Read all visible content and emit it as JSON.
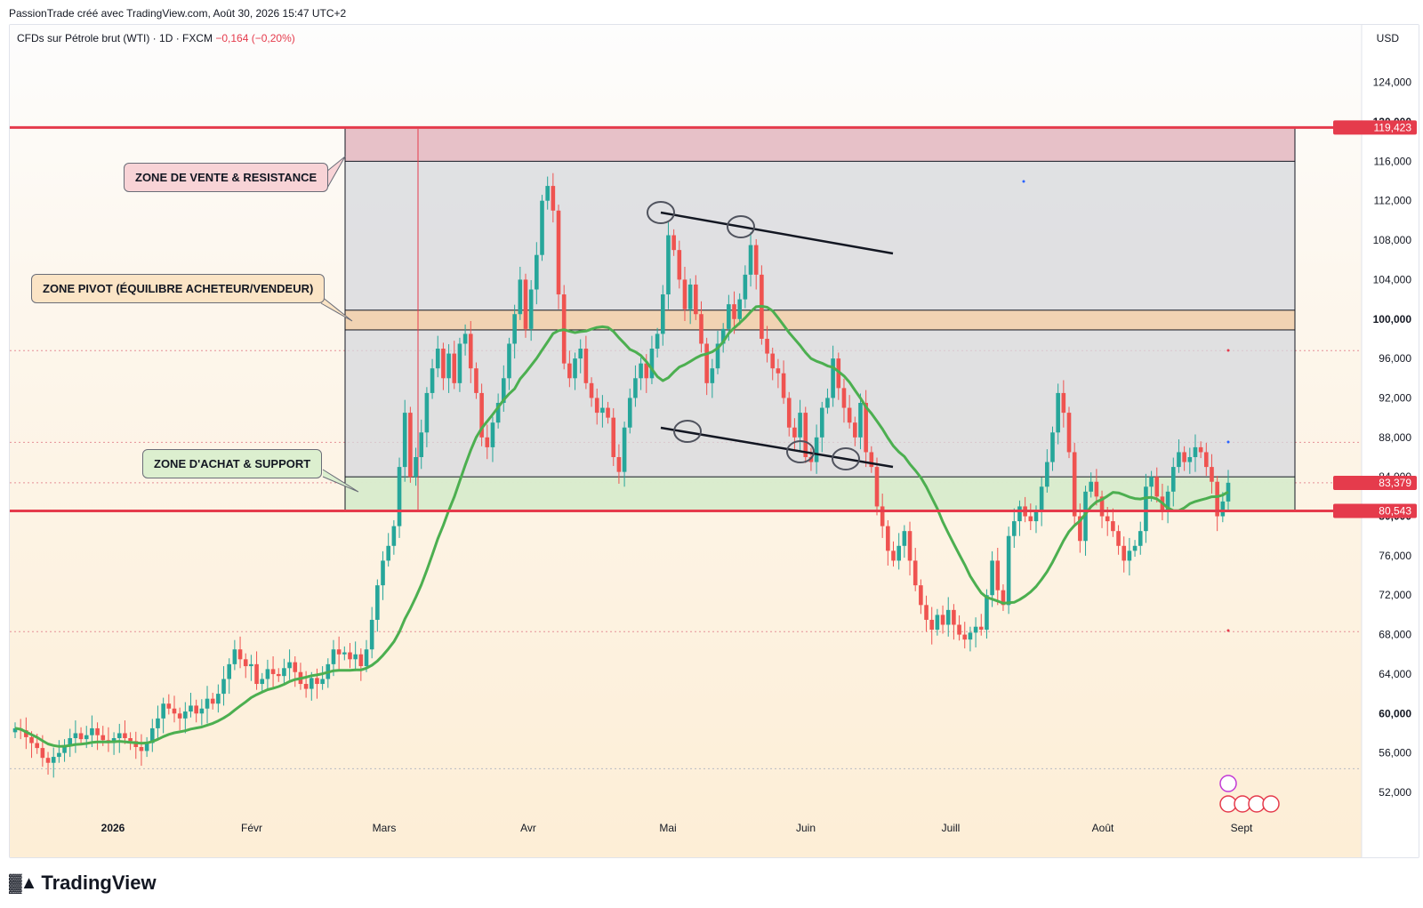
{
  "top_line": "PassionTrade créé avec TradingView.com, Août 30, 2026 15:47 UTC+2",
  "header": {
    "symbol": "CFDs sur Pétrole brut (WTI) · 1D · FXCM",
    "change": "−0,164 (−0,20%)"
  },
  "currency": "USD",
  "brand": "TradingView",
  "annotations": {
    "sell_zone": "ZONE DE VENTE & RESISTANCE",
    "pivot_zone": "ZONE PIVOT (ÉQUILIBRE ACHETEUR/VENDEUR)",
    "buy_zone": "ZONE D'ACHAT & SUPPORT"
  },
  "colors": {
    "up": "#26a69a",
    "down": "#ef5350",
    "ma": "#4caf50",
    "level": "#e53b4c",
    "sell_zone": "#e8b9c0",
    "pivot_zone": "#f3d1ae",
    "buy_zone": "#d9eccc",
    "range_box": "#d6d8de"
  },
  "chart_data": {
    "type": "candlestick",
    "title": "CFDs sur Pétrole brut (WTI) · 1D · FXCM",
    "ylabel": "USD",
    "ylim": [
      48000,
      130000
    ],
    "y_ticks": [
      "52,000",
      "56,000",
      "60,000",
      "64,000",
      "68,000",
      "72,000",
      "76,000",
      "80,000",
      "84,000",
      "88,000",
      "92,000",
      "96,000",
      "100,000",
      "104,000",
      "108,000",
      "112,000",
      "116,000",
      "120,000",
      "124,000"
    ],
    "x_labels": [
      "2026",
      "Févr",
      "Mars",
      "Avr",
      "Mai",
      "Juin",
      "Juill",
      "Août",
      "Sept"
    ],
    "price_labels": [
      {
        "text": "119,423",
        "value": 119423,
        "color": "#e53b4c"
      },
      {
        "text": "83,379",
        "value": 83379,
        "color": "#e53b4c"
      },
      {
        "text": "80,543",
        "value": 80543,
        "color": "#e53b4c"
      }
    ],
    "horizontal_levels": [
      119423,
      80543
    ],
    "zones": {
      "sell": [
        116000,
        119423
      ],
      "pivot": [
        98900,
        100900
      ],
      "buy": [
        80543,
        84000
      ]
    },
    "closes": [
      58.5,
      58.3,
      57.6,
      57.0,
      56.5,
      55.5,
      55.0,
      55.6,
      56.0,
      56.8,
      57.5,
      58.0,
      57.4,
      57.8,
      58.5,
      57.8,
      57.3,
      57.0,
      57.5,
      58.0,
      57.5,
      57.2,
      56.6,
      56.2,
      57.0,
      58.5,
      59.5,
      61.0,
      60.5,
      60.0,
      59.5,
      60.2,
      60.8,
      60.0,
      60.5,
      61.5,
      61.0,
      62.0,
      63.5,
      65.0,
      66.5,
      65.5,
      64.8,
      65.0,
      63.0,
      63.5,
      64.5,
      64.0,
      63.8,
      64.6,
      65.2,
      64.2,
      63.0,
      62.5,
      63.6,
      63.0,
      63.5,
      65.0,
      66.5,
      66.0,
      66.2,
      65.5,
      66.0,
      64.8,
      66.5,
      69.5,
      73.0,
      75.5,
      77.0,
      79.0,
      85.0,
      90.5,
      84.0,
      86.0,
      88.5,
      92.5,
      95.0,
      97.0,
      94.0,
      96.5,
      93.5,
      97.5,
      98.5,
      95.0,
      92.5,
      88.0,
      87.0,
      89.5,
      91.5,
      94.0,
      97.5,
      100.5,
      104.0,
      99.0,
      103.0,
      106.5,
      112.0,
      113.5,
      111.0,
      102.5,
      95.5,
      94.0,
      96.0,
      97.0,
      93.5,
      92.0,
      90.5,
      91.0,
      90.0,
      86.0,
      84.5,
      89.0,
      92.0,
      94.0,
      95.5,
      94.0,
      97.0,
      98.5,
      102.5,
      108.5,
      107.0,
      104.0,
      101.0,
      103.5,
      100.5,
      97.5,
      93.5,
      95.0,
      97.5,
      99.0,
      101.5,
      100.0,
      102.0,
      104.5,
      107.5,
      104.5,
      98.0,
      96.5,
      95.0,
      94.5,
      92.0,
      89.0,
      88.0,
      90.5,
      86.0,
      85.5,
      88.0,
      91.0,
      92.0,
      96.0,
      93.0,
      91.0,
      89.5,
      88.0,
      91.5,
      86.5,
      85.0,
      81.0,
      79.0,
      76.5,
      75.5,
      77.0,
      78.5,
      75.5,
      73.0,
      71.0,
      69.5,
      68.5,
      70.0,
      69.0,
      70.5,
      69.0,
      68.0,
      67.5,
      68.2,
      68.8,
      68.5,
      72.0,
      75.5,
      72.5,
      71.0,
      78.0,
      79.5,
      81.0,
      80.0,
      79.5,
      80.5,
      83.0,
      85.5,
      88.5,
      92.5,
      90.5,
      86.5,
      80.0,
      77.5,
      82.5,
      83.5,
      82.0,
      80.0,
      79.5,
      78.5,
      77.0,
      75.5,
      76.5,
      77.0,
      78.5,
      83.0,
      84.0,
      82.0,
      80.5,
      82.5,
      85.0,
      86.5,
      85.5,
      86.0,
      87.0,
      86.5,
      85.0,
      83.5,
      80.0,
      81.5,
      83.4
    ]
  }
}
